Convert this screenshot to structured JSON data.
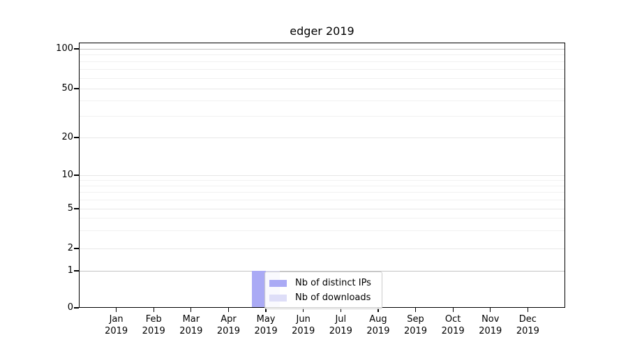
{
  "title": "edger 2019",
  "chart_data": {
    "type": "bar",
    "title": "edger 2019",
    "scale": "symlog",
    "grid": true,
    "legend_position": "lower-center-inside",
    "ylim": [
      0,
      110
    ],
    "categories": [
      {
        "month": "Jan",
        "year": "2019"
      },
      {
        "month": "Feb",
        "year": "2019"
      },
      {
        "month": "Mar",
        "year": "2019"
      },
      {
        "month": "Apr",
        "year": "2019"
      },
      {
        "month": "May",
        "year": "2019"
      },
      {
        "month": "Jun",
        "year": "2019"
      },
      {
        "month": "Jul",
        "year": "2019"
      },
      {
        "month": "Aug",
        "year": "2019"
      },
      {
        "month": "Sep",
        "year": "2019"
      },
      {
        "month": "Oct",
        "year": "2019"
      },
      {
        "month": "Nov",
        "year": "2019"
      },
      {
        "month": "Dec",
        "year": "2019"
      }
    ],
    "series": [
      {
        "name": "Nb of distinct IPs",
        "color": "#aaaaf5",
        "values": [
          0,
          0,
          0,
          0,
          1,
          0,
          0,
          0,
          0,
          0,
          0,
          0
        ]
      },
      {
        "name": "Nb of downloads",
        "color": "#dedef8",
        "values": [
          0,
          0,
          0,
          0,
          1,
          0,
          0,
          0,
          0,
          0,
          0,
          0
        ]
      }
    ],
    "yticks": [
      {
        "label": "0",
        "value": 0,
        "emph": false
      },
      {
        "label": "1",
        "value": 1,
        "emph": true
      },
      {
        "label": "2",
        "value": 2,
        "emph": false
      },
      {
        "label": "5",
        "value": 5,
        "emph": false
      },
      {
        "label": "10",
        "value": 10,
        "emph": false
      },
      {
        "label": "20",
        "value": 20,
        "emph": false
      },
      {
        "label": "50",
        "value": 50,
        "emph": false
      },
      {
        "label": "100",
        "value": 100,
        "emph": true
      }
    ],
    "minor_gridlines": [
      3,
      4,
      6,
      7,
      8,
      9,
      30,
      40,
      60,
      70,
      80,
      90
    ]
  },
  "colors": {
    "grid_minor": "#f1f1f1",
    "grid_major": "#e7e7e7",
    "grid_emphasis": "#c3c3c3",
    "spine": "#000000"
  }
}
